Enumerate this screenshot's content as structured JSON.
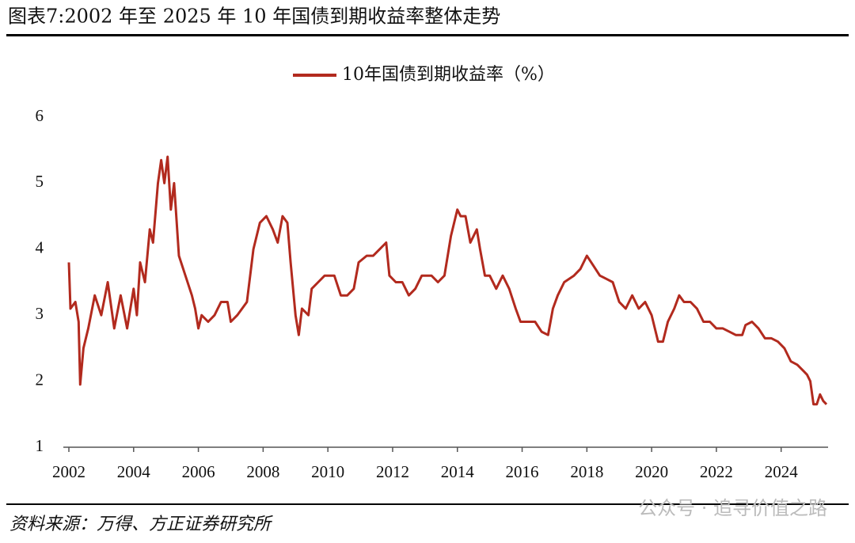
{
  "chart_data": {
    "type": "line",
    "title": "图表7:2002 年至 2025 年 10 年国债到期收益率整体走势",
    "source": "资料来源：万得、方正证券研究所",
    "watermark": "公众号 · 追寻价值之路",
    "x": [
      2002.0,
      2002.05,
      2002.2,
      2002.3,
      2002.35,
      2002.45,
      2002.6,
      2002.8,
      2003.0,
      2003.2,
      2003.4,
      2003.6,
      2003.8,
      2004.0,
      2004.1,
      2004.2,
      2004.35,
      2004.5,
      2004.6,
      2004.75,
      2004.85,
      2004.95,
      2005.05,
      2005.15,
      2005.25,
      2005.4,
      2005.6,
      2005.8,
      2005.9,
      2006.0,
      2006.1,
      2006.3,
      2006.5,
      2006.7,
      2006.9,
      2007.0,
      2007.2,
      2007.5,
      2007.7,
      2007.9,
      2008.1,
      2008.3,
      2008.45,
      2008.6,
      2008.75,
      2008.85,
      2009.0,
      2009.1,
      2009.2,
      2009.4,
      2009.5,
      2009.7,
      2009.9,
      2010.0,
      2010.2,
      2010.4,
      2010.6,
      2010.8,
      2010.95,
      2011.2,
      2011.4,
      2011.6,
      2011.8,
      2011.9,
      2012.1,
      2012.3,
      2012.5,
      2012.7,
      2012.9,
      2013.2,
      2013.4,
      2013.6,
      2013.8,
      2014.0,
      2014.1,
      2014.25,
      2014.4,
      2014.6,
      2014.7,
      2014.85,
      2015.0,
      2015.2,
      2015.4,
      2015.6,
      2015.8,
      2015.95,
      2016.2,
      2016.4,
      2016.6,
      2016.8,
      2016.95,
      2017.1,
      2017.3,
      2017.6,
      2017.8,
      2018.0,
      2018.2,
      2018.4,
      2018.6,
      2018.8,
      2019.0,
      2019.2,
      2019.4,
      2019.6,
      2019.8,
      2020.0,
      2020.2,
      2020.35,
      2020.5,
      2020.7,
      2020.85,
      2021.0,
      2021.2,
      2021.4,
      2021.6,
      2021.8,
      2022.0,
      2022.2,
      2022.4,
      2022.6,
      2022.8,
      2022.9,
      2023.1,
      2023.3,
      2023.5,
      2023.7,
      2023.9,
      2024.1,
      2024.3,
      2024.5,
      2024.7,
      2024.8,
      2024.9,
      2025.0,
      2025.1,
      2025.2,
      2025.3,
      2025.4
    ],
    "series": [
      {
        "name": "10年国债到期收益率（%）",
        "color": "#b22a1e",
        "values": [
          3.8,
          3.1,
          3.2,
          2.9,
          1.95,
          2.5,
          2.8,
          3.3,
          3.0,
          3.5,
          2.8,
          3.3,
          2.8,
          3.4,
          3.0,
          3.8,
          3.5,
          4.3,
          4.1,
          5.0,
          5.35,
          5.0,
          5.4,
          4.6,
          5.0,
          3.9,
          3.6,
          3.3,
          3.1,
          2.8,
          3.0,
          2.9,
          3.0,
          3.2,
          3.2,
          2.9,
          3.0,
          3.2,
          4.0,
          4.4,
          4.5,
          4.3,
          4.1,
          4.5,
          4.4,
          3.8,
          3.0,
          2.7,
          3.1,
          3.0,
          3.4,
          3.5,
          3.6,
          3.6,
          3.6,
          3.3,
          3.3,
          3.4,
          3.8,
          3.9,
          3.9,
          4.0,
          4.1,
          3.6,
          3.5,
          3.5,
          3.3,
          3.4,
          3.6,
          3.6,
          3.5,
          3.6,
          4.2,
          4.6,
          4.5,
          4.5,
          4.1,
          4.3,
          4.0,
          3.6,
          3.6,
          3.4,
          3.6,
          3.4,
          3.1,
          2.9,
          2.9,
          2.9,
          2.75,
          2.7,
          3.1,
          3.3,
          3.5,
          3.6,
          3.7,
          3.9,
          3.75,
          3.6,
          3.55,
          3.5,
          3.2,
          3.1,
          3.3,
          3.1,
          3.2,
          3.0,
          2.6,
          2.6,
          2.9,
          3.1,
          3.3,
          3.2,
          3.2,
          3.1,
          2.9,
          2.9,
          2.8,
          2.8,
          2.75,
          2.7,
          2.7,
          2.85,
          2.9,
          2.8,
          2.65,
          2.65,
          2.6,
          2.5,
          2.3,
          2.25,
          2.15,
          2.1,
          2.0,
          1.65,
          1.65,
          1.8,
          1.7,
          1.65
        ]
      }
    ],
    "xlim": [
      2002,
      2025.45
    ],
    "xticks": [
      2002,
      2004,
      2006,
      2008,
      2010,
      2012,
      2014,
      2016,
      2018,
      2020,
      2022,
      2024
    ],
    "ylim": [
      1,
      6
    ],
    "yticks": [
      1,
      2,
      3,
      4,
      5,
      6
    ]
  }
}
